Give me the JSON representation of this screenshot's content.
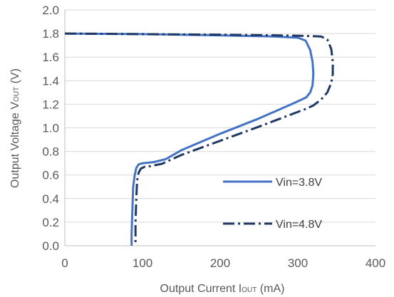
{
  "chart_data": {
    "type": "line",
    "xlabel": {
      "main": "Output  Current I",
      "sub": "OUT",
      "unit": " (mA)"
    },
    "ylabel": {
      "main": "Output  Voltage V",
      "sub": "OUT",
      "unit": " (V)"
    },
    "xlim": [
      0,
      400
    ],
    "ylim": [
      0,
      2.0
    ],
    "xticks": [
      0,
      100,
      200,
      300,
      400
    ],
    "xtick_labels": [
      "0",
      "100",
      "200",
      "300",
      "400"
    ],
    "yticks": [
      0.0,
      0.2,
      0.4,
      0.6,
      0.8,
      1.0,
      1.2,
      1.4,
      1.6,
      1.8,
      2.0
    ],
    "ytick_labels": [
      "0.0",
      "0.2",
      "0.4",
      "0.6",
      "0.8",
      "1.0",
      "1.2",
      "1.4",
      "1.6",
      "1.8",
      "2.0"
    ],
    "grid": "horizontal",
    "legend_position": "bottom-right",
    "series": [
      {
        "name": "Vin=3.8V",
        "color": "#4472c4",
        "style": "solid",
        "points": [
          [
            0,
            1.8
          ],
          [
            100,
            1.795
          ],
          [
            200,
            1.785
          ],
          [
            270,
            1.775
          ],
          [
            300,
            1.765
          ],
          [
            310,
            1.74
          ],
          [
            316,
            1.66
          ],
          [
            319,
            1.56
          ],
          [
            320,
            1.46
          ],
          [
            319,
            1.36
          ],
          [
            316,
            1.3
          ],
          [
            311,
            1.26
          ],
          [
            305,
            1.24
          ],
          [
            295,
            1.21
          ],
          [
            250,
            1.08
          ],
          [
            200,
            0.95
          ],
          [
            150,
            0.81
          ],
          [
            130,
            0.735
          ],
          [
            115,
            0.71
          ],
          [
            100,
            0.7
          ],
          [
            95,
            0.69
          ],
          [
            92,
            0.66
          ],
          [
            90,
            0.6
          ],
          [
            88,
            0.5
          ],
          [
            87,
            0.3
          ],
          [
            86,
            0.1
          ],
          [
            86,
            0.0
          ]
        ]
      },
      {
        "name": "Vin=4.8V",
        "color": "#1f3864",
        "style": "dashdot",
        "points": [
          [
            0,
            1.8
          ],
          [
            100,
            1.795
          ],
          [
            200,
            1.79
          ],
          [
            270,
            1.785
          ],
          [
            310,
            1.78
          ],
          [
            330,
            1.775
          ],
          [
            338,
            1.75
          ],
          [
            343,
            1.67
          ],
          [
            345,
            1.56
          ],
          [
            345,
            1.46
          ],
          [
            343,
            1.38
          ],
          [
            338,
            1.3
          ],
          [
            330,
            1.24
          ],
          [
            320,
            1.19
          ],
          [
            310,
            1.16
          ],
          [
            250,
            1.01
          ],
          [
            200,
            0.89
          ],
          [
            150,
            0.77
          ],
          [
            125,
            0.695
          ],
          [
            110,
            0.675
          ],
          [
            103,
            0.67
          ],
          [
            98,
            0.655
          ],
          [
            95,
            0.62
          ],
          [
            93,
            0.55
          ],
          [
            92,
            0.4
          ],
          [
            91,
            0.2
          ],
          [
            91,
            0.0
          ]
        ]
      }
    ]
  }
}
